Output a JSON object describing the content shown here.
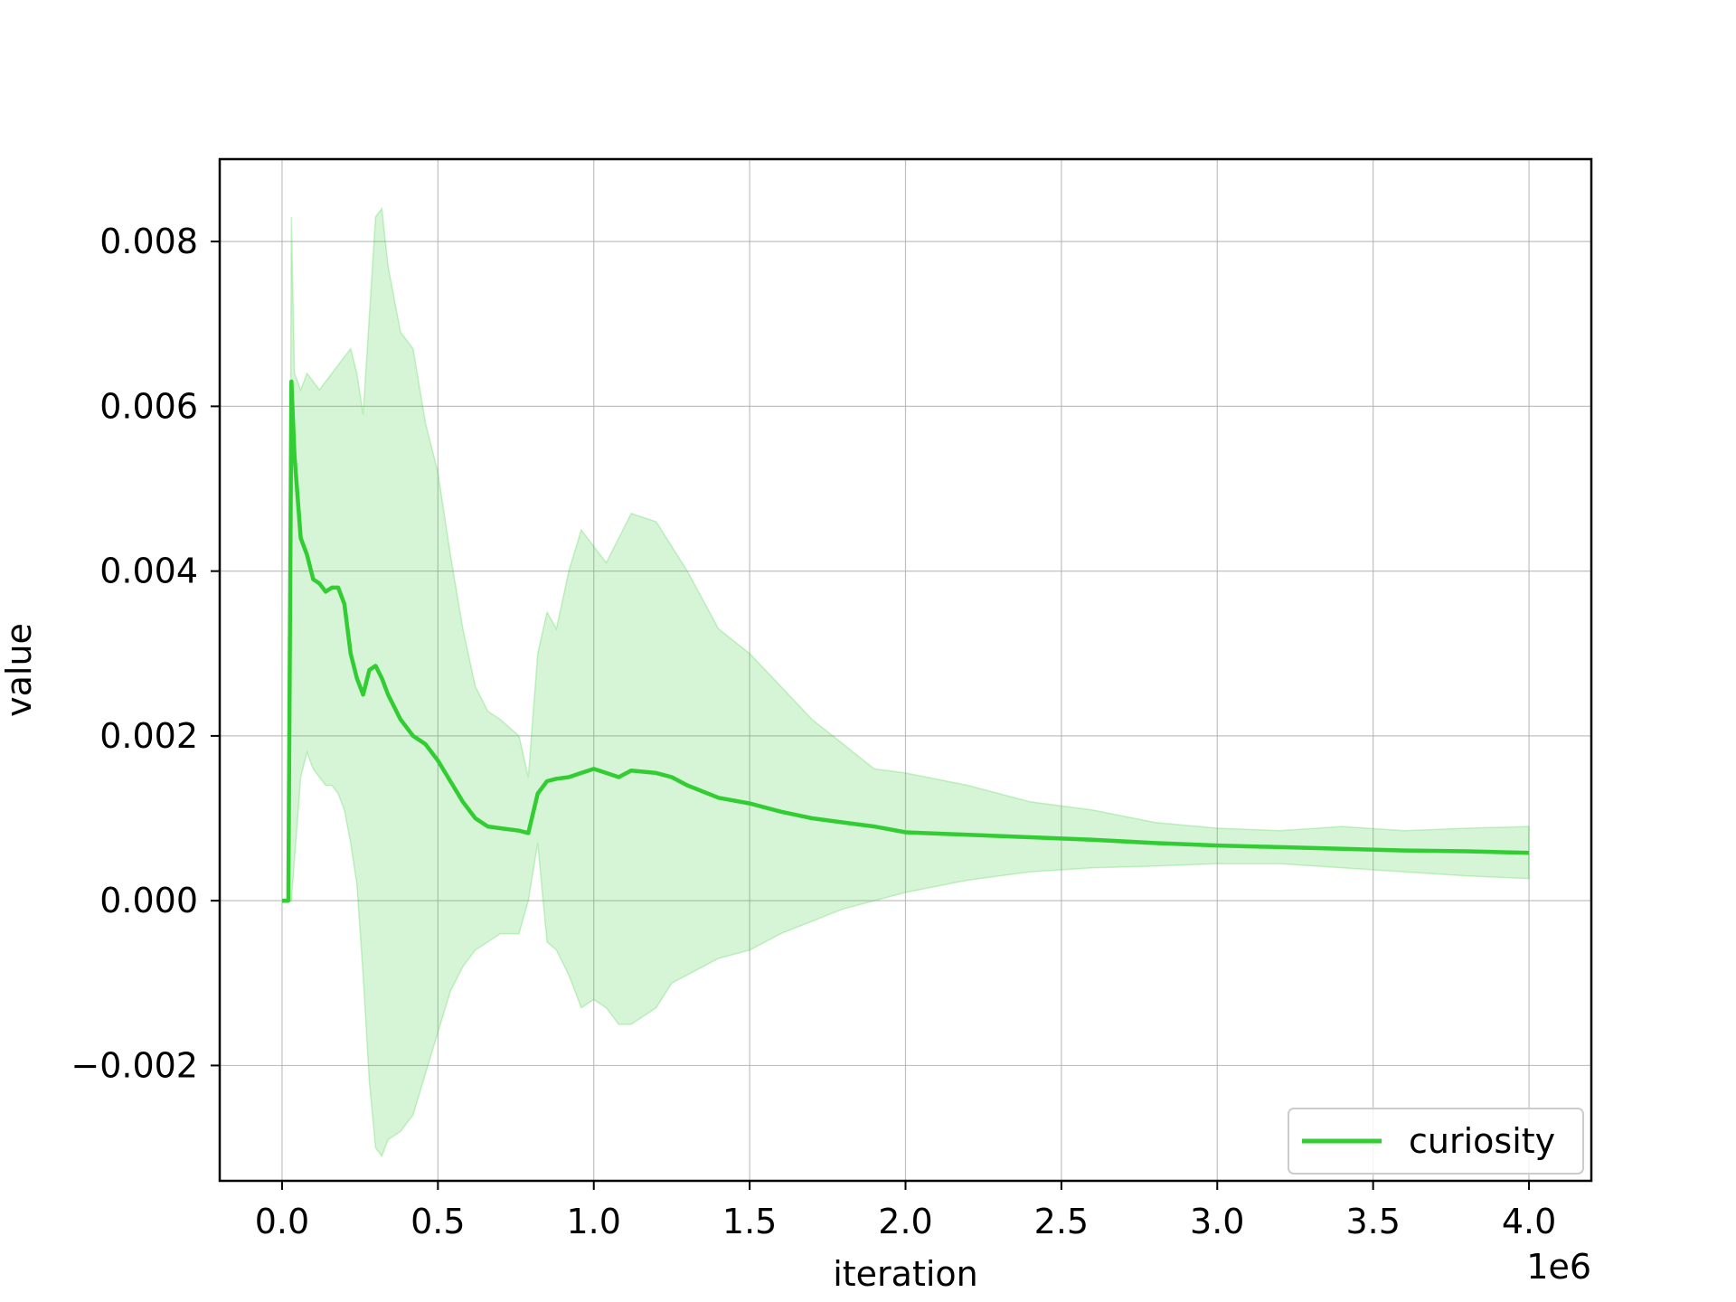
{
  "chart_data": {
    "type": "line",
    "xlabel": "iteration",
    "ylabel": "value",
    "x_offset_text": "1e6",
    "xlim": [
      -200000,
      4200000
    ],
    "ylim": [
      -0.0034,
      0.009
    ],
    "x_ticks": [
      0,
      500000,
      1000000,
      1500000,
      2000000,
      2500000,
      3000000,
      3500000,
      4000000
    ],
    "x_tick_labels": [
      "0.0",
      "0.5",
      "1.0",
      "1.5",
      "2.0",
      "2.5",
      "3.0",
      "3.5",
      "4.0"
    ],
    "y_ticks": [
      -0.002,
      0.0,
      0.002,
      0.004,
      0.006,
      0.008
    ],
    "y_tick_labels": [
      "−0.002",
      "0.000",
      "0.002",
      "0.004",
      "0.006",
      "0.008"
    ],
    "grid": true,
    "legend_position": "lower right",
    "series": [
      {
        "name": "curiosity",
        "color": "#32cd32",
        "band_color": "#32cd32",
        "x": [
          0,
          20000,
          30000,
          40000,
          60000,
          80000,
          100000,
          120000,
          140000,
          160000,
          180000,
          200000,
          220000,
          240000,
          260000,
          280000,
          300000,
          320000,
          340000,
          380000,
          420000,
          460000,
          500000,
          540000,
          580000,
          620000,
          660000,
          700000,
          760000,
          790000,
          820000,
          850000,
          880000,
          920000,
          960000,
          1000000,
          1040000,
          1080000,
          1120000,
          1200000,
          1250000,
          1300000,
          1400000,
          1500000,
          1600000,
          1700000,
          1800000,
          1900000,
          2000000,
          2200000,
          2400000,
          2600000,
          2800000,
          3000000,
          3200000,
          3400000,
          3600000,
          3800000,
          4000000
        ],
        "y": [
          0.0,
          0.0,
          0.0063,
          0.0054,
          0.0044,
          0.0042,
          0.0039,
          0.00385,
          0.00375,
          0.0038,
          0.0038,
          0.0036,
          0.003,
          0.0027,
          0.0025,
          0.0028,
          0.00285,
          0.0027,
          0.0025,
          0.0022,
          0.002,
          0.0019,
          0.0017,
          0.00145,
          0.0012,
          0.001,
          0.0009,
          0.00088,
          0.00085,
          0.00082,
          0.0013,
          0.00145,
          0.00148,
          0.0015,
          0.00155,
          0.0016,
          0.00155,
          0.0015,
          0.00158,
          0.00155,
          0.0015,
          0.0014,
          0.00125,
          0.00118,
          0.00108,
          0.001,
          0.00095,
          0.0009,
          0.00083,
          0.0008,
          0.00077,
          0.00074,
          0.0007,
          0.00067,
          0.00065,
          0.00063,
          0.00061,
          0.0006,
          0.00058
        ],
        "upper": [
          0.0,
          0.0,
          0.0083,
          0.0064,
          0.0062,
          0.0064,
          0.0063,
          0.0062,
          0.0063,
          0.0064,
          0.0065,
          0.0066,
          0.0067,
          0.0064,
          0.0059,
          0.0071,
          0.0083,
          0.0084,
          0.0077,
          0.0069,
          0.0067,
          0.0058,
          0.0052,
          0.0042,
          0.0033,
          0.0026,
          0.0023,
          0.0022,
          0.002,
          0.0015,
          0.003,
          0.0035,
          0.0033,
          0.004,
          0.0045,
          0.0043,
          0.0041,
          0.0044,
          0.0047,
          0.0046,
          0.0043,
          0.004,
          0.0033,
          0.003,
          0.0026,
          0.0022,
          0.0019,
          0.0016,
          0.00155,
          0.0014,
          0.0012,
          0.0011,
          0.00095,
          0.00088,
          0.00085,
          0.0009,
          0.00085,
          0.00088,
          0.0009
        ],
        "lower": [
          0.0,
          0.0,
          0.0,
          0.0005,
          0.0015,
          0.0018,
          0.0016,
          0.0015,
          0.0014,
          0.0014,
          0.0013,
          0.0011,
          0.0007,
          0.0002,
          -0.0009,
          -0.0022,
          -0.003,
          -0.0031,
          -0.0029,
          -0.0028,
          -0.0026,
          -0.0021,
          -0.0016,
          -0.0011,
          -0.0008,
          -0.0006,
          -0.0005,
          -0.0004,
          -0.0004,
          0.0,
          0.0007,
          -0.0005,
          -0.0006,
          -0.0009,
          -0.0013,
          -0.0012,
          -0.0013,
          -0.0015,
          -0.0015,
          -0.0013,
          -0.001,
          -0.0009,
          -0.0007,
          -0.0006,
          -0.0004,
          -0.00025,
          -0.0001,
          0.0,
          0.0001,
          0.00025,
          0.00035,
          0.0004,
          0.00042,
          0.00045,
          0.00045,
          0.0004,
          0.00035,
          0.0003,
          0.00027
        ]
      }
    ]
  }
}
